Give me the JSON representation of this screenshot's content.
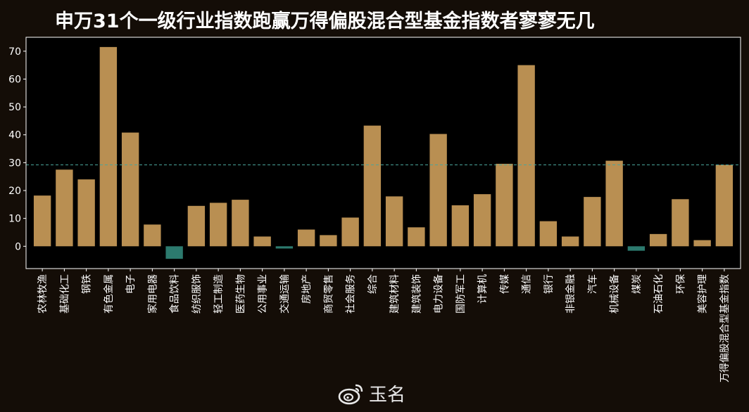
{
  "chart_data": {
    "type": "bar",
    "title": "申万31个一级行业指数跑赢万得偏股混合型基金指数者寥寥无几",
    "categories": [
      "农林牧渔",
      "基础化工",
      "钢铁",
      "有色金属",
      "电子",
      "家用电器",
      "食品饮料",
      "纺织服饰",
      "轻工制造",
      "医药生物",
      "公用事业",
      "交通运输",
      "房地产",
      "商贸零售",
      "社会服务",
      "综合",
      "建筑材料",
      "建筑装饰",
      "电力设备",
      "国防军工",
      "计算机",
      "传媒",
      "通信",
      "银行",
      "非银金融",
      "汽车",
      "机械设备",
      "煤炭",
      "石油石化",
      "环保",
      "美容护理",
      "万得偏股混合型基金指数"
    ],
    "values": [
      18.2,
      27.5,
      24.0,
      71.5,
      40.8,
      7.8,
      -4.5,
      14.5,
      15.6,
      16.7,
      3.5,
      -0.8,
      6.0,
      4.0,
      10.3,
      43.3,
      17.9,
      6.8,
      40.3,
      14.7,
      18.7,
      29.6,
      65.0,
      9.0,
      3.5,
      17.7,
      30.7,
      -1.6,
      4.4,
      16.9,
      2.2,
      29.2
    ],
    "reference_line": 29.2,
    "ylim": [
      -8,
      75
    ],
    "yticks": [
      0,
      10,
      20,
      30,
      40,
      50,
      60,
      70
    ],
    "xlabel": "",
    "ylabel": "",
    "grid": false,
    "colors": {
      "positive": "#b98f52",
      "negative": "#2c7a6e",
      "reference": "#4aa59a",
      "axis": "#ffffff",
      "plot_bg": "#000000"
    }
  },
  "watermark": {
    "icon": "weibo-icon",
    "text": "玉名"
  }
}
